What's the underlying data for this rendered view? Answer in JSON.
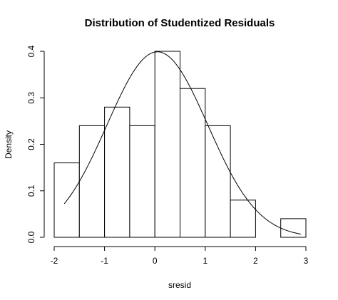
{
  "chart_data": {
    "type": "bar",
    "title": "Distribution of Studentized Residuals",
    "xlabel": "sresid",
    "ylabel": "Density",
    "bins": [
      {
        "x0": -2.0,
        "x1": -1.5,
        "density": 0.16
      },
      {
        "x0": -1.5,
        "x1": -1.0,
        "density": 0.24
      },
      {
        "x0": -1.0,
        "x1": -0.5,
        "density": 0.28
      },
      {
        "x0": -0.5,
        "x1": 0.0,
        "density": 0.24
      },
      {
        "x0": 0.0,
        "x1": 0.5,
        "density": 0.4
      },
      {
        "x0": 0.5,
        "x1": 1.0,
        "density": 0.32
      },
      {
        "x0": 1.0,
        "x1": 1.5,
        "density": 0.24
      },
      {
        "x0": 1.5,
        "x1": 2.0,
        "density": 0.08
      },
      {
        "x0": 2.0,
        "x1": 2.5,
        "density": 0.0
      },
      {
        "x0": 2.5,
        "x1": 3.0,
        "density": 0.04
      }
    ],
    "xlim": [
      -2,
      3
    ],
    "ylim": [
      0,
      0.4
    ],
    "x_ticks": [
      "-2",
      "-1",
      "0",
      "1",
      "2",
      "3"
    ],
    "y_ticks": [
      "0.0",
      "0.1",
      "0.2",
      "0.3",
      "0.4"
    ],
    "overlay_curve": {
      "type": "normal-density",
      "mean": 0.05,
      "sd": 1.0,
      "x_range": [
        -1.8,
        2.9
      ]
    },
    "grid": false
  }
}
